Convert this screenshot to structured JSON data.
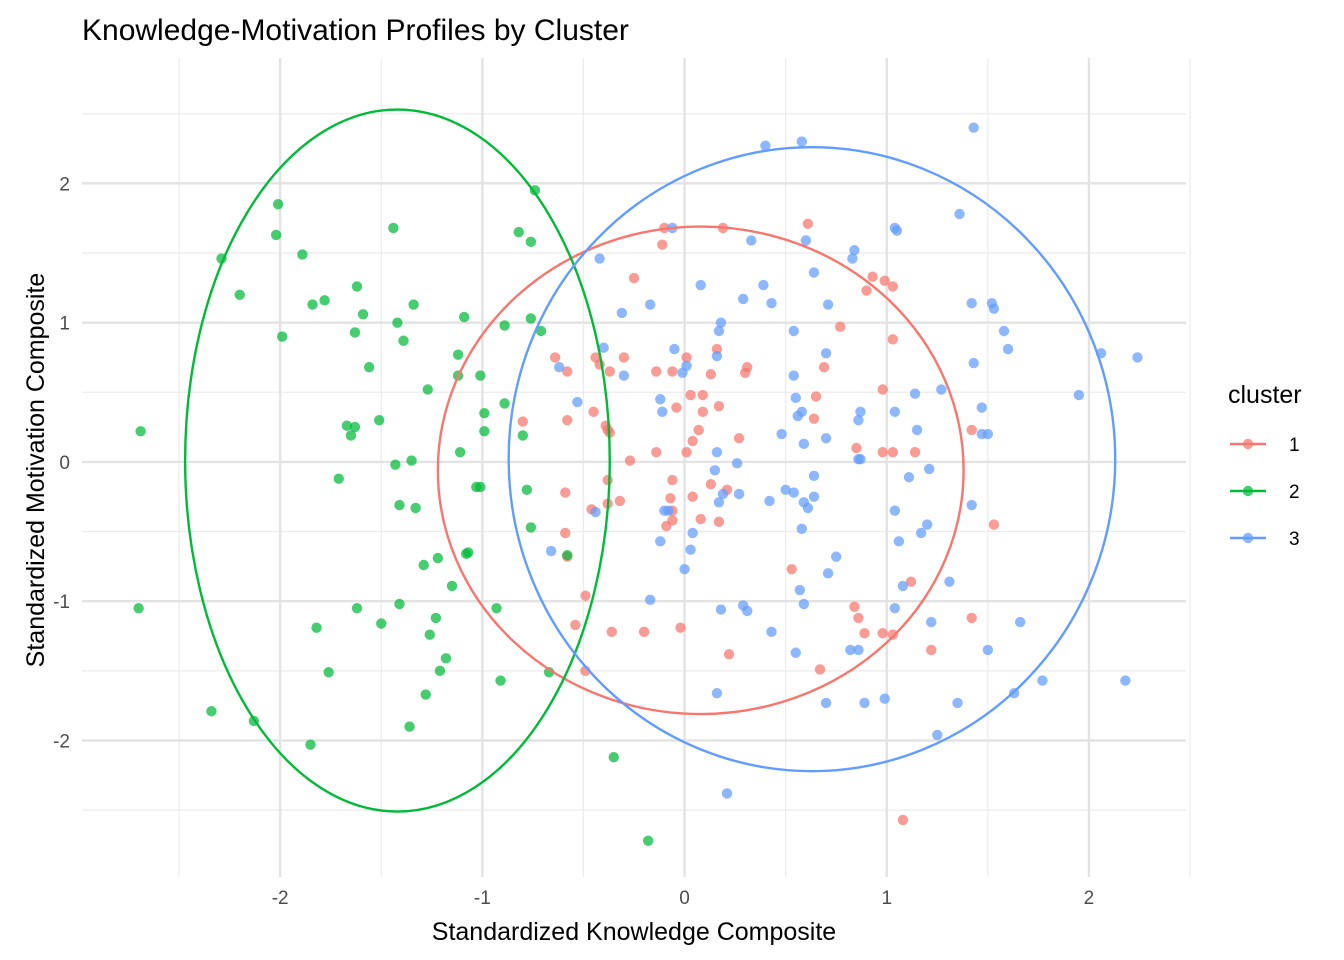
{
  "chart_data": {
    "type": "scatter",
    "title": "Knowledge-Motivation Profiles by Cluster",
    "xlabel": "Standardized Knowledge Composite",
    "ylabel": "Standardized Motivation Composite",
    "xlim": [
      -2.98,
      2.48
    ],
    "ylim": [
      -2.98,
      2.9
    ],
    "x_ticks": [
      -2,
      -1,
      0,
      1,
      2
    ],
    "y_ticks": [
      -2,
      -1,
      0,
      1,
      2
    ],
    "x_tick_labels": [
      "-2",
      "-1",
      "0",
      "1",
      "2"
    ],
    "y_tick_labels": [
      "-2",
      "-1",
      "0",
      "1",
      "2"
    ],
    "grid": true,
    "legend": {
      "title": "cluster",
      "position": "right"
    },
    "series": [
      {
        "name": "1",
        "color": "#F8766D",
        "ellipse": {
          "cx": 0.08,
          "cy": -0.06,
          "rx": 1.3,
          "ry": 1.75
        },
        "points": [
          [
            -0.64,
            0.75
          ],
          [
            -0.58,
            0.65
          ],
          [
            -0.44,
            0.75
          ],
          [
            -0.3,
            0.75
          ],
          [
            -0.25,
            1.32
          ],
          [
            -0.1,
            1.68
          ],
          [
            -0.11,
            1.56
          ],
          [
            0.19,
            1.68
          ],
          [
            0.61,
            1.71
          ],
          [
            -0.8,
            0.29
          ],
          [
            -0.58,
            0.3
          ],
          [
            -0.45,
            0.36
          ],
          [
            -0.42,
            0.7
          ],
          [
            -0.37,
            0.65
          ],
          [
            -0.39,
            0.26
          ],
          [
            -0.37,
            0.21
          ],
          [
            -0.38,
            0.23
          ],
          [
            -0.38,
            -0.13
          ],
          [
            -0.38,
            -0.3
          ],
          [
            -0.32,
            -0.28
          ],
          [
            -0.46,
            -0.34
          ],
          [
            -0.59,
            -0.22
          ],
          [
            -0.59,
            -0.51
          ],
          [
            -0.58,
            -0.68
          ],
          [
            -0.49,
            -0.96
          ],
          [
            -0.54,
            -1.17
          ],
          [
            -0.36,
            -1.22
          ],
          [
            -0.2,
            -1.22
          ],
          [
            -0.02,
            -1.19
          ],
          [
            -0.49,
            -1.5
          ],
          [
            -0.27,
            0.01
          ],
          [
            -0.14,
            0.65
          ],
          [
            -0.06,
            0.65
          ],
          [
            -0.04,
            0.39
          ],
          [
            0.01,
            0.75
          ],
          [
            0.03,
            0.48
          ],
          [
            0.04,
            0.15
          ],
          [
            0.07,
            0.23
          ],
          [
            0.09,
            0.48
          ],
          [
            0.09,
            0.36
          ],
          [
            0.13,
            0.63
          ],
          [
            0.16,
            0.81
          ],
          [
            0.17,
            0.4
          ],
          [
            0.3,
            0.64
          ],
          [
            0.31,
            0.68
          ],
          [
            0.27,
            0.17
          ],
          [
            0.01,
            0.07
          ],
          [
            -0.14,
            0.07
          ],
          [
            -0.06,
            -0.13
          ],
          [
            -0.07,
            -0.26
          ],
          [
            -0.06,
            -0.35
          ],
          [
            -0.09,
            -0.46
          ],
          [
            -0.06,
            -0.42
          ],
          [
            0.04,
            -0.25
          ],
          [
            0.08,
            -0.41
          ],
          [
            0.13,
            -0.16
          ],
          [
            0.21,
            -0.2
          ],
          [
            0.17,
            -0.43
          ],
          [
            0.22,
            -1.38
          ],
          [
            0.67,
            -1.49
          ],
          [
            0.53,
            -0.77
          ],
          [
            0.64,
            0.31
          ],
          [
            0.65,
            0.47
          ],
          [
            0.69,
            0.68
          ],
          [
            0.77,
            0.97
          ],
          [
            0.93,
            1.33
          ],
          [
            0.99,
            1.3
          ],
          [
            1.03,
            1.26
          ],
          [
            0.9,
            1.23
          ],
          [
            1.03,
            0.88
          ],
          [
            0.98,
            0.52
          ],
          [
            0.98,
            0.07
          ],
          [
            1.03,
            0.07
          ],
          [
            1.14,
            0.07
          ],
          [
            0.85,
            0.1
          ],
          [
            0.84,
            -1.04
          ],
          [
            0.86,
            -1.12
          ],
          [
            0.89,
            -1.23
          ],
          [
            0.98,
            -1.23
          ],
          [
            1.03,
            -1.24
          ],
          [
            1.12,
            -0.86
          ],
          [
            1.22,
            -1.35
          ],
          [
            1.42,
            -1.12
          ],
          [
            1.42,
            0.23
          ],
          [
            1.53,
            -0.45
          ],
          [
            1.08,
            -2.57
          ]
        ]
      },
      {
        "name": "2",
        "color": "#00BA38",
        "ellipse": {
          "cx": -1.42,
          "cy": 0.01,
          "rx": 1.05,
          "ry": 2.52
        },
        "points": [
          [
            -2.69,
            0.22
          ],
          [
            -2.7,
            -1.05
          ],
          [
            -2.34,
            -1.79
          ],
          [
            -2.13,
            -1.86
          ],
          [
            -1.85,
            -2.03
          ],
          [
            -2.29,
            1.46
          ],
          [
            -2.2,
            1.2
          ],
          [
            -2.01,
            1.85
          ],
          [
            -2.02,
            1.63
          ],
          [
            -1.99,
            0.9
          ],
          [
            -1.89,
            1.49
          ],
          [
            -1.84,
            1.13
          ],
          [
            -1.78,
            1.16
          ],
          [
            -1.82,
            -1.19
          ],
          [
            -1.76,
            -1.51
          ],
          [
            -1.71,
            -0.12
          ],
          [
            -1.67,
            0.26
          ],
          [
            -1.65,
            0.19
          ],
          [
            -1.63,
            0.25
          ],
          [
            -1.63,
            0.93
          ],
          [
            -1.62,
            1.26
          ],
          [
            -1.59,
            1.06
          ],
          [
            -1.56,
            0.68
          ],
          [
            -1.62,
            -1.05
          ],
          [
            -1.51,
            0.3
          ],
          [
            -1.5,
            -1.16
          ],
          [
            -1.44,
            1.68
          ],
          [
            -1.43,
            -0.02
          ],
          [
            -1.41,
            -0.31
          ],
          [
            -1.42,
            1.0
          ],
          [
            -1.39,
            0.87
          ],
          [
            -1.34,
            1.13
          ],
          [
            -1.35,
            0.01
          ],
          [
            -1.33,
            -0.33
          ],
          [
            -1.29,
            -0.74
          ],
          [
            -1.41,
            -1.02
          ],
          [
            -1.36,
            -1.9
          ],
          [
            -1.28,
            -1.67
          ],
          [
            -1.27,
            0.52
          ],
          [
            -1.26,
            -1.24
          ],
          [
            -1.23,
            -1.12
          ],
          [
            -1.22,
            -0.69
          ],
          [
            -1.21,
            -1.5
          ],
          [
            -1.18,
            -1.41
          ],
          [
            -1.15,
            -0.89
          ],
          [
            -1.12,
            0.77
          ],
          [
            -1.12,
            0.62
          ],
          [
            -1.11,
            0.07
          ],
          [
            -1.09,
            1.04
          ],
          [
            -1.07,
            -0.65
          ],
          [
            -1.08,
            -0.66
          ],
          [
            -1.03,
            -0.18
          ],
          [
            -1.01,
            0.62
          ],
          [
            -1.01,
            -0.18
          ],
          [
            -0.99,
            0.35
          ],
          [
            -0.99,
            0.22
          ],
          [
            -0.93,
            -1.05
          ],
          [
            -0.91,
            -1.57
          ],
          [
            -0.89,
            0.42
          ],
          [
            -0.89,
            0.98
          ],
          [
            -0.82,
            1.65
          ],
          [
            -0.8,
            0.19
          ],
          [
            -0.78,
            -0.2
          ],
          [
            -0.76,
            1.58
          ],
          [
            -0.76,
            1.03
          ],
          [
            -0.76,
            -0.47
          ],
          [
            -0.74,
            1.95
          ],
          [
            -0.71,
            0.94
          ],
          [
            -0.67,
            -1.51
          ],
          [
            -0.58,
            -0.67
          ],
          [
            -0.35,
            -2.12
          ],
          [
            -0.18,
            -2.72
          ]
        ]
      },
      {
        "name": "3",
        "color": "#619CFF",
        "ellipse": {
          "cx": 0.63,
          "cy": 0.02,
          "rx": 1.5,
          "ry": 2.24
        },
        "points": [
          [
            0.4,
            2.27
          ],
          [
            0.58,
            2.3
          ],
          [
            1.43,
            2.4
          ],
          [
            -0.06,
            1.68
          ],
          [
            -0.42,
            1.46
          ],
          [
            0.33,
            1.59
          ],
          [
            0.6,
            1.59
          ],
          [
            1.04,
            1.68
          ],
          [
            1.05,
            1.66
          ],
          [
            0.83,
            1.46
          ],
          [
            0.84,
            1.52
          ],
          [
            1.36,
            1.78
          ],
          [
            0.08,
            1.27
          ],
          [
            0.39,
            1.27
          ],
          [
            0.29,
            1.17
          ],
          [
            0.43,
            1.14
          ],
          [
            0.64,
            1.36
          ],
          [
            0.71,
            1.13
          ],
          [
            -0.17,
            1.13
          ],
          [
            -0.31,
            1.07
          ],
          [
            0.18,
            1.0
          ],
          [
            0.17,
            0.94
          ],
          [
            0.54,
            0.94
          ],
          [
            0.7,
            0.78
          ],
          [
            1.42,
            1.14
          ],
          [
            1.52,
            1.14
          ],
          [
            1.53,
            1.1
          ],
          [
            1.58,
            0.94
          ],
          [
            1.6,
            0.81
          ],
          [
            2.06,
            0.78
          ],
          [
            2.24,
            0.75
          ],
          [
            -0.4,
            0.82
          ],
          [
            -0.62,
            0.68
          ],
          [
            -0.3,
            0.62
          ],
          [
            -0.05,
            0.81
          ],
          [
            -0.01,
            0.64
          ],
          [
            0.01,
            0.69
          ],
          [
            0.16,
            0.76
          ],
          [
            0.54,
            0.62
          ],
          [
            0.55,
            0.46
          ],
          [
            0.56,
            0.33
          ],
          [
            0.58,
            0.36
          ],
          [
            0.7,
            0.17
          ],
          [
            0.59,
            0.13
          ],
          [
            0.48,
            0.2
          ],
          [
            0.86,
            0.3
          ],
          [
            0.87,
            0.36
          ],
          [
            1.04,
            0.36
          ],
          [
            1.14,
            0.49
          ],
          [
            1.15,
            0.23
          ],
          [
            1.27,
            0.52
          ],
          [
            1.43,
            0.71
          ],
          [
            1.47,
            0.39
          ],
          [
            1.47,
            0.2
          ],
          [
            1.5,
            0.2
          ],
          [
            1.95,
            0.48
          ],
          [
            -0.12,
            0.45
          ],
          [
            -0.11,
            0.36
          ],
          [
            -0.53,
            0.43
          ],
          [
            0.16,
            0.07
          ],
          [
            0.26,
            -0.01
          ],
          [
            0.15,
            -0.06
          ],
          [
            0.19,
            -0.23
          ],
          [
            0.17,
            -0.29
          ],
          [
            0.27,
            -0.23
          ],
          [
            0.42,
            -0.28
          ],
          [
            0.5,
            -0.2
          ],
          [
            0.54,
            -0.22
          ],
          [
            0.59,
            -0.29
          ],
          [
            0.61,
            -0.33
          ],
          [
            0.64,
            -0.25
          ],
          [
            0.58,
            -0.48
          ],
          [
            0.64,
            -0.1
          ],
          [
            0.75,
            -0.68
          ],
          [
            0.86,
            0.02
          ],
          [
            0.87,
            0.02
          ],
          [
            1.06,
            -0.57
          ],
          [
            1.11,
            -0.11
          ],
          [
            1.17,
            -0.51
          ],
          [
            1.2,
            -0.45
          ],
          [
            1.21,
            -0.05
          ],
          [
            1.04,
            -0.35
          ],
          [
            1.08,
            -0.89
          ],
          [
            1.31,
            -0.86
          ],
          [
            1.42,
            -0.31
          ],
          [
            -0.44,
            -0.36
          ],
          [
            -0.1,
            -0.35
          ],
          [
            -0.08,
            -0.35
          ],
          [
            -0.12,
            -0.57
          ],
          [
            0.04,
            -0.51
          ],
          [
            0.03,
            -0.63
          ],
          [
            0.0,
            -0.77
          ],
          [
            -0.66,
            -0.64
          ],
          [
            -0.17,
            -0.99
          ],
          [
            0.18,
            -1.06
          ],
          [
            0.29,
            -1.03
          ],
          [
            0.31,
            -1.07
          ],
          [
            0.43,
            -1.22
          ],
          [
            0.55,
            -1.37
          ],
          [
            0.57,
            -0.92
          ],
          [
            0.59,
            -1.02
          ],
          [
            0.71,
            -0.8
          ],
          [
            0.82,
            -1.35
          ],
          [
            0.86,
            -1.35
          ],
          [
            0.7,
            -1.73
          ],
          [
            0.89,
            -1.73
          ],
          [
            0.99,
            -1.7
          ],
          [
            1.04,
            -1.05
          ],
          [
            1.22,
            -1.15
          ],
          [
            1.5,
            -1.35
          ],
          [
            1.66,
            -1.15
          ],
          [
            1.77,
            -1.57
          ],
          [
            2.18,
            -1.57
          ],
          [
            1.35,
            -1.73
          ],
          [
            1.63,
            -1.66
          ],
          [
            1.25,
            -1.96
          ],
          [
            0.16,
            -1.66
          ],
          [
            0.21,
            -2.38
          ]
        ]
      }
    ]
  }
}
